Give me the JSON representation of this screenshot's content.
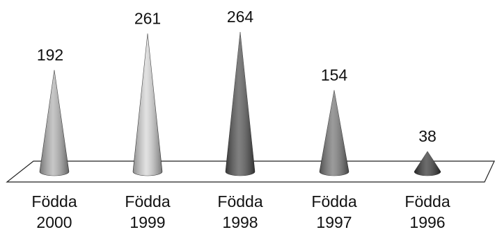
{
  "chart_data": {
    "type": "bar",
    "style": "3d-cones",
    "categories": [
      {
        "line1": "Födda",
        "line2": "2000"
      },
      {
        "line1": "Födda",
        "line2": "1999"
      },
      {
        "line1": "Födda",
        "line2": "1998"
      },
      {
        "line1": "Födda",
        "line2": "1997"
      },
      {
        "line1": "Födda",
        "line2": "1996"
      }
    ],
    "values": [
      192,
      261,
      264,
      154,
      38
    ],
    "value_labels": [
      "192",
      "261",
      "264",
      "154",
      "38"
    ],
    "colors": [
      "#b4b4b4",
      "#d8d8d8",
      "#555555",
      "#7a7a7a",
      "#3a3a3a"
    ],
    "ylim": [
      0,
      264
    ],
    "title": "",
    "xlabel": "",
    "ylabel": "",
    "grid": false,
    "legend": false
  }
}
